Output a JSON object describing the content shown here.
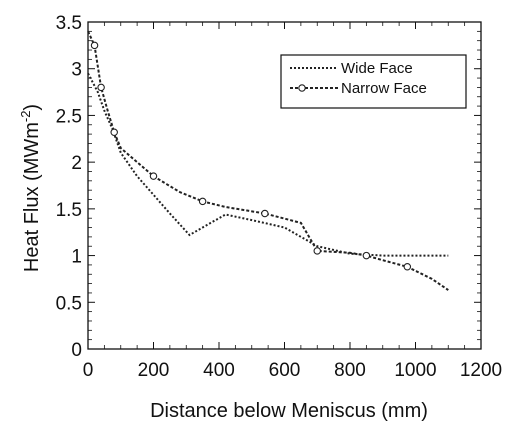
{
  "chart_data": {
    "type": "line",
    "title": "",
    "xlabel": "Distance below Meniscus (mm)",
    "ylabel": "Heat Flux (MWm",
    "ylabel_superscript": "-2",
    "ylabel_close": ")",
    "xlim": [
      0,
      1200
    ],
    "ylim": [
      0,
      3.5
    ],
    "xticks": [
      0,
      200,
      400,
      600,
      800,
      1000,
      1200
    ],
    "yticks": [
      0,
      0.5,
      1,
      1.5,
      2,
      2.5,
      3,
      3.5
    ],
    "ytick_labels": [
      "0",
      "0.5",
      "1",
      "1.5",
      "2",
      "2.5",
      "3",
      "3.5"
    ],
    "grid": false,
    "legend_position": "top-right",
    "series": [
      {
        "name": "Wide Face",
        "color": "#222222",
        "marker": "none",
        "x": [
          0,
          15,
          30,
          50,
          75,
          100,
          150,
          200,
          250,
          310,
          350,
          420,
          500,
          600,
          700,
          800,
          900,
          1000,
          1100
        ],
        "y": [
          2.95,
          2.85,
          2.75,
          2.55,
          2.35,
          2.1,
          1.85,
          1.65,
          1.45,
          1.22,
          1.3,
          1.44,
          1.38,
          1.3,
          1.1,
          1.02,
          1.0,
          1.0,
          1.0
        ]
      },
      {
        "name": "Narrow Face",
        "color": "#222222",
        "marker": "circle",
        "x": [
          0,
          20,
          40,
          60,
          80,
          100,
          150,
          200,
          280,
          350,
          420,
          540,
          650,
          700,
          800,
          850,
          900,
          975,
          1050,
          1100
        ],
        "y": [
          3.4,
          3.25,
          2.8,
          2.55,
          2.32,
          2.15,
          2.0,
          1.85,
          1.68,
          1.58,
          1.52,
          1.45,
          1.35,
          1.05,
          1.03,
          1.0,
          0.95,
          0.88,
          0.75,
          0.63
        ],
        "marker_indices": [
          1,
          2,
          4,
          7,
          9,
          11,
          13,
          15,
          17
        ]
      }
    ]
  }
}
